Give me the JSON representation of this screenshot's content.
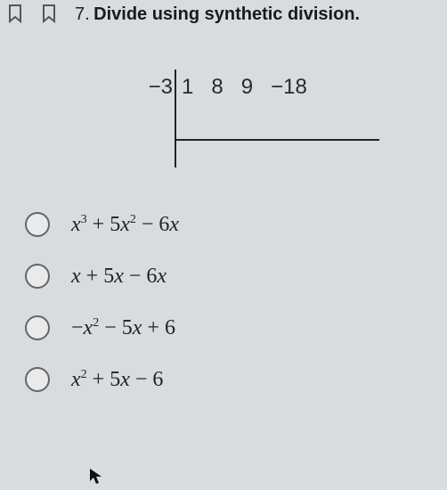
{
  "header": {
    "number": "7.",
    "text": "Divide using synthetic division."
  },
  "diagram": {
    "divisor": "−3",
    "coefficients": [
      "1",
      "8",
      "9",
      "−18"
    ]
  },
  "options": [
    {
      "html": "<span class='upright'></span>x<sup>3</sup> <span class='upright'>+ 5</span>x<sup>2</sup> <span class='upright'>− 6</span>x"
    },
    {
      "html": "x <span class='upright'>+ 5</span>x <span class='upright'>− 6</span>x"
    },
    {
      "html": "<span class='upright'>−</span>x<sup>2</sup> <span class='upright'>− 5</span>x <span class='upright'>+ 6</span>"
    },
    {
      "html": "x<sup>2</sup> <span class='upright'>+ 5</span>x <span class='upright'>− 6</span>"
    }
  ],
  "colors": {
    "background": "#d8dcdf",
    "text": "#2a2a2a",
    "line": "#222222",
    "radio_border": "#666666"
  }
}
